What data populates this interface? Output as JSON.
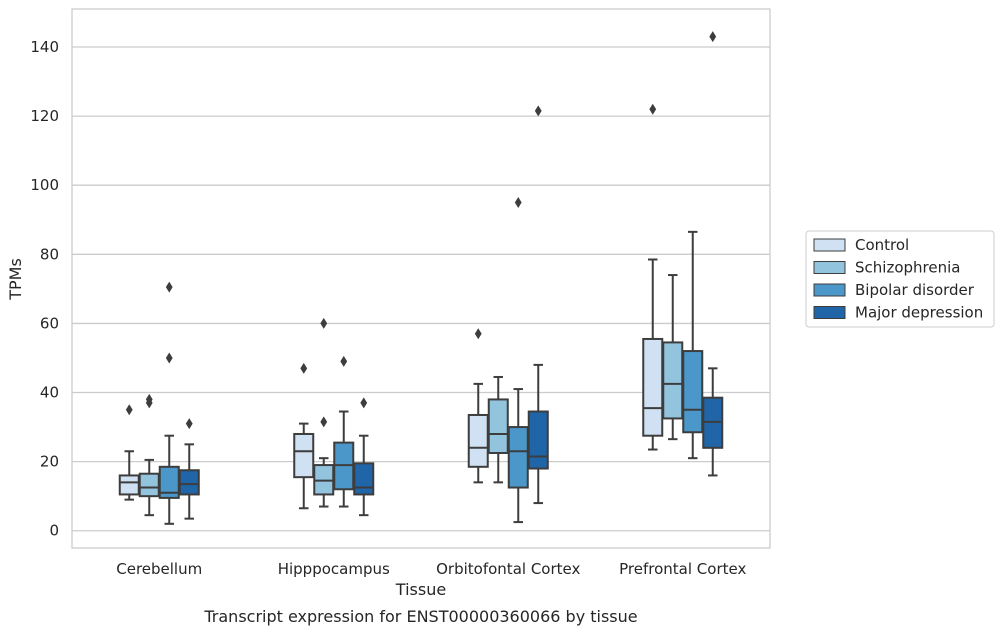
{
  "colors": {
    "background": "#ffffff",
    "grid": "#cccccc",
    "frame": "#cccccc",
    "box_edge": "#3d3d3d",
    "text": "#262626"
  },
  "chart_data": {
    "type": "box",
    "xlabel": "Tissue",
    "ylabel": "TPMs",
    "caption": "Transcript expression for ENST00000360066 by tissue",
    "ylim": [
      -5,
      151
    ],
    "yticks": [
      0,
      20,
      40,
      60,
      80,
      100,
      120,
      140
    ],
    "grid": "horizontal",
    "legend_position": "right",
    "categories": [
      "Cerebellum",
      "Hipppocampus",
      "Orbitofontal Cortex",
      "Prefrontal Cortex"
    ],
    "series": [
      {
        "name": "Control",
        "color": "#cfe1f2",
        "boxes": [
          {
            "whislo": 9,
            "q1": 10.5,
            "med": 14,
            "q3": 16,
            "whishi": 23,
            "fliers": [
              35
            ]
          },
          {
            "whislo": 6.5,
            "q1": 15.5,
            "med": 23,
            "q3": 28,
            "whishi": 31,
            "fliers": [
              47
            ]
          },
          {
            "whislo": 14,
            "q1": 18.5,
            "med": 24,
            "q3": 33.5,
            "whishi": 42.5,
            "fliers": [
              57
            ]
          },
          {
            "whislo": 23.5,
            "q1": 27.5,
            "med": 35.5,
            "q3": 55.5,
            "whishi": 78.5,
            "fliers": [
              122
            ]
          }
        ]
      },
      {
        "name": "Schizophrenia",
        "color": "#93c4de",
        "boxes": [
          {
            "whislo": 4.5,
            "q1": 10,
            "med": 12.5,
            "q3": 16.5,
            "whishi": 20.5,
            "fliers": [
              37,
              38
            ]
          },
          {
            "whislo": 7,
            "q1": 10.5,
            "med": 14.5,
            "q3": 19,
            "whishi": 21,
            "fliers": [
              31.5,
              60
            ]
          },
          {
            "whislo": 14,
            "q1": 22.5,
            "med": 28,
            "q3": 38,
            "whishi": 44.5,
            "fliers": []
          },
          {
            "whislo": 26.5,
            "q1": 32.5,
            "med": 42.5,
            "q3": 54.5,
            "whishi": 74,
            "fliers": []
          }
        ]
      },
      {
        "name": "Bipolar disorder",
        "color": "#4b97c9",
        "boxes": [
          {
            "whislo": 2,
            "q1": 9.5,
            "med": 11,
            "q3": 18.5,
            "whishi": 27.5,
            "fliers": [
              50,
              70.5
            ]
          },
          {
            "whislo": 7,
            "q1": 12,
            "med": 19,
            "q3": 25.5,
            "whishi": 34.5,
            "fliers": [
              49
            ]
          },
          {
            "whislo": 2.5,
            "q1": 12.5,
            "med": 23,
            "q3": 30,
            "whishi": 41,
            "fliers": [
              95
            ]
          },
          {
            "whislo": 21,
            "q1": 28.5,
            "med": 35,
            "q3": 52,
            "whishi": 86.5,
            "fliers": []
          }
        ]
      },
      {
        "name": "Major depression",
        "color": "#1f65a8",
        "boxes": [
          {
            "whislo": 3.5,
            "q1": 10.5,
            "med": 13.5,
            "q3": 17.5,
            "whishi": 25,
            "fliers": [
              31
            ]
          },
          {
            "whislo": 4.5,
            "q1": 10.5,
            "med": 12.5,
            "q3": 19.5,
            "whishi": 27.5,
            "fliers": [
              37
            ]
          },
          {
            "whislo": 8,
            "q1": 18,
            "med": 21.5,
            "q3": 34.5,
            "whishi": 48,
            "fliers": [
              121.5
            ]
          },
          {
            "whislo": 16,
            "q1": 24,
            "med": 31.5,
            "q3": 38.5,
            "whishi": 47,
            "fliers": [
              143
            ]
          }
        ]
      }
    ]
  }
}
